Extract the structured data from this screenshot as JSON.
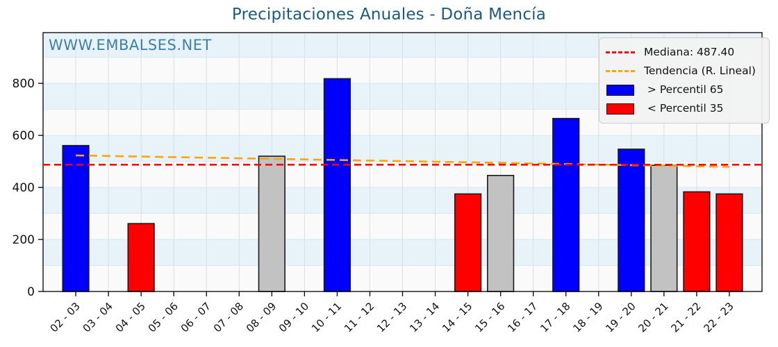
{
  "watermark": {
    "text": "WWW.EMBALSES.NET",
    "color": "#3e7fa9"
  },
  "chart_data": {
    "type": "bar",
    "title": "Precipitaciones Anuales - Doña Mencía",
    "title_color": "#1a5a7d",
    "categories": [
      "02 - 03",
      "03 - 04",
      "04 - 05",
      "05 - 06",
      "06 - 07",
      "07 - 08",
      "08 - 09",
      "09 - 10",
      "10 - 11",
      "11 - 12",
      "12 - 13",
      "13 - 14",
      "14 - 15",
      "15 - 16",
      "16 - 17",
      "17 - 18",
      "18 - 19",
      "19 - 20",
      "20 - 21",
      "21 - 22",
      "22 - 23"
    ],
    "values": [
      561,
      null,
      261,
      null,
      null,
      null,
      520,
      null,
      818,
      null,
      null,
      null,
      375,
      446,
      null,
      665,
      null,
      547,
      485,
      383,
      375
    ],
    "classes": [
      "high",
      null,
      "low",
      null,
      null,
      null,
      "mid",
      null,
      "high",
      null,
      null,
      null,
      "low",
      "mid",
      null,
      "high",
      null,
      "high",
      "mid",
      "low",
      "low"
    ],
    "median": 487.4,
    "trend": {
      "start_value": 523,
      "end_value": 479
    },
    "ylim": [
      0,
      995
    ],
    "yticks": [
      0,
      200,
      400,
      600,
      800
    ],
    "xlabel": "",
    "ylabel": "",
    "grid": true,
    "legend_position": "upper right",
    "colors": {
      "above_p65": "#0000ff",
      "below_p35": "#ff0000",
      "mid_band": "#c2c2c2",
      "bar_edge": "#1a1a1a",
      "median_line": "#ff0000",
      "trend_line": "#ffa500",
      "band_fill": "#e8f3f9",
      "row_fill": "#fafafa",
      "vgrid": "#d9dee3",
      "hgrid": "#d5e9f2",
      "spine": "#000000"
    },
    "legend": [
      {
        "type": "dashed-line",
        "color": "#ff0000",
        "label": "Mediana: 487.40"
      },
      {
        "type": "dashed-line",
        "color": "#ffa500",
        "label": "Tendencia (R. Lineal)"
      },
      {
        "type": "swatch",
        "color": "#0000ff",
        "label": " > Percentil 65"
      },
      {
        "type": "swatch",
        "color": "#ff0000",
        "label": " < Percentil 35"
      }
    ]
  }
}
